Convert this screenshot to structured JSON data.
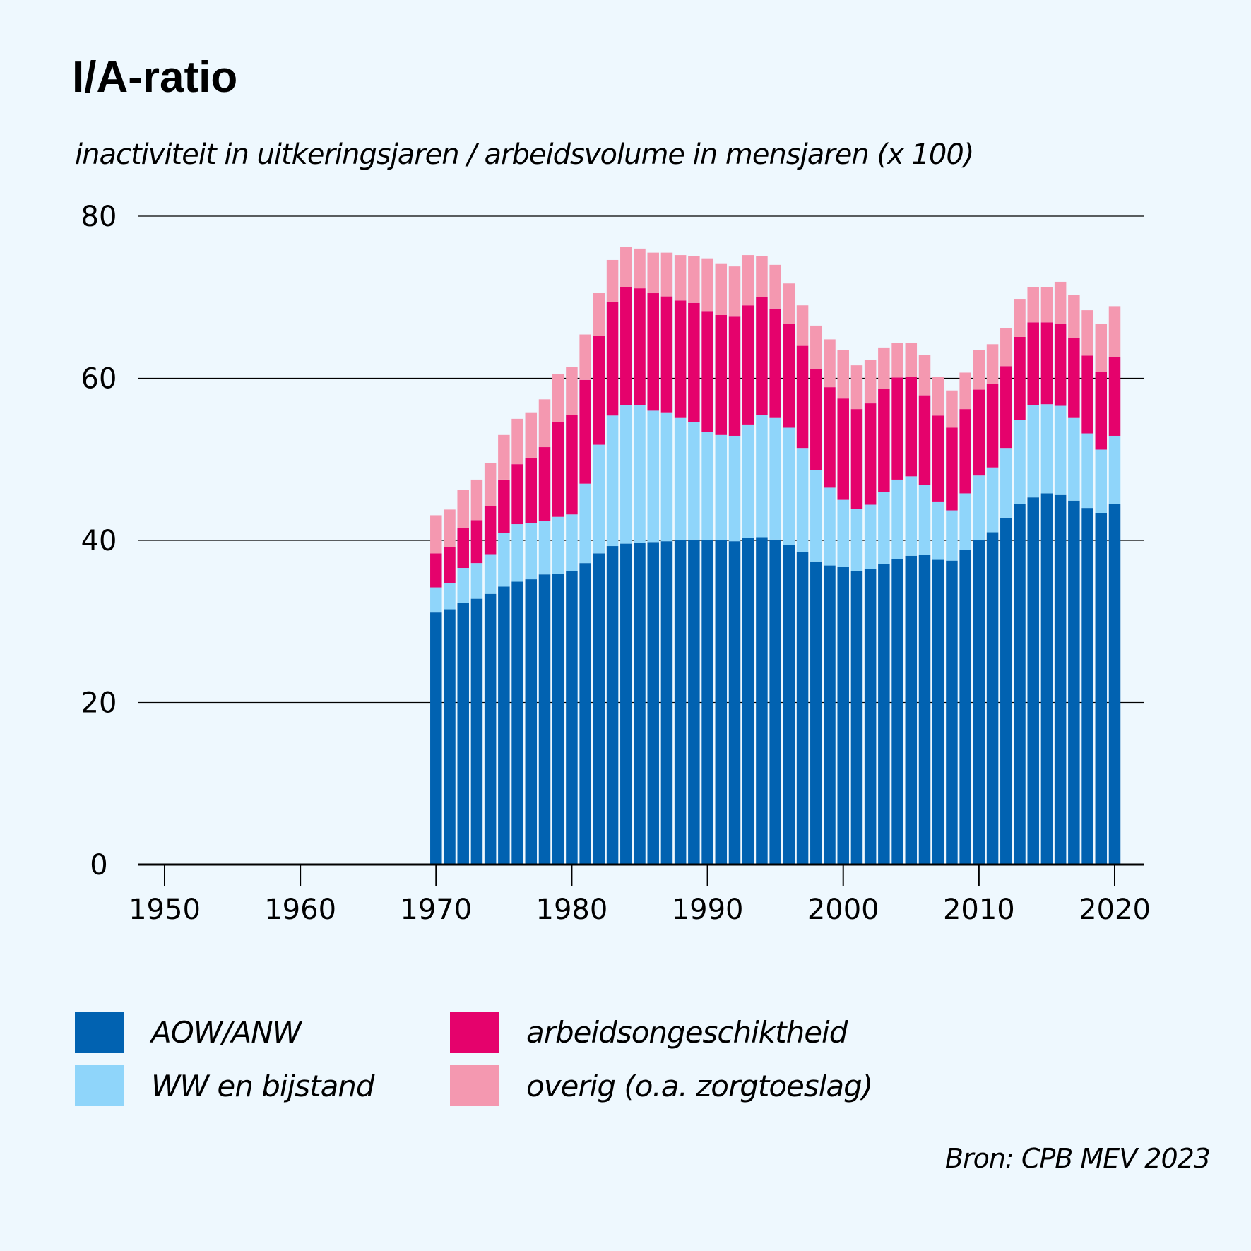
{
  "chart_data": {
    "type": "bar",
    "stacked": true,
    "title": "I/A-ratio",
    "subtitle": "inactiviteit in uitkeringsjaren / arbeidsvolume in mensjaren (x 100)",
    "source": "Bron: CPB MEV 2023",
    "ylim": [
      0,
      80
    ],
    "yticks": [
      0,
      20,
      40,
      60,
      80
    ],
    "xlim": [
      1947,
      2022
    ],
    "xticks": [
      1950,
      1960,
      1970,
      1980,
      1990,
      2000,
      2010,
      2020
    ],
    "grid": true,
    "legend_position": "bottom",
    "x": [
      1970,
      1971,
      1972,
      1973,
      1974,
      1975,
      1976,
      1977,
      1978,
      1979,
      1980,
      1981,
      1982,
      1983,
      1984,
      1985,
      1986,
      1987,
      1988,
      1989,
      1990,
      1991,
      1992,
      1993,
      1994,
      1995,
      1996,
      1997,
      1998,
      1999,
      2000,
      2001,
      2002,
      2003,
      2004,
      2005,
      2006,
      2007,
      2008,
      2009,
      2010,
      2011,
      2012,
      2013,
      2014,
      2015,
      2016,
      2017,
      2018,
      2019,
      2020
    ],
    "series": [
      {
        "name": "AOW/ANW",
        "color": "#0162b1",
        "values": [
          31.1,
          31.5,
          32.3,
          32.8,
          33.4,
          34.3,
          34.9,
          35.2,
          35.8,
          35.9,
          36.2,
          37.2,
          38.4,
          39.3,
          39.6,
          39.7,
          39.8,
          39.9,
          40.0,
          40.1,
          40.0,
          40.0,
          39.9,
          40.3,
          40.4,
          40.1,
          39.4,
          38.6,
          37.4,
          36.9,
          36.7,
          36.2,
          36.5,
          37.1,
          37.7,
          38.1,
          38.2,
          37.6,
          37.5,
          38.8,
          40.0,
          41.0,
          42.8,
          44.5,
          45.3,
          45.8,
          45.6,
          44.9,
          44.0,
          43.4,
          44.5
        ]
      },
      {
        "name": "WW en bijstand",
        "color": "#8fd5fa",
        "values": [
          3.1,
          3.2,
          4.3,
          4.4,
          4.9,
          6.6,
          7.1,
          6.9,
          6.6,
          7.0,
          7.0,
          9.8,
          13.4,
          16.1,
          17.1,
          17.0,
          16.2,
          15.9,
          15.1,
          14.5,
          13.4,
          13.0,
          13.0,
          14.0,
          15.1,
          15.0,
          14.5,
          12.8,
          11.3,
          9.6,
          8.3,
          7.7,
          7.9,
          8.9,
          9.8,
          9.8,
          8.6,
          7.2,
          6.2,
          7.0,
          8.0,
          8.0,
          8.6,
          10.4,
          11.4,
          11.0,
          11.0,
          10.2,
          9.2,
          7.8,
          8.4
        ]
      },
      {
        "name": "arbeidsongeschiktheid",
        "color": "#e5026c",
        "values": [
          4.2,
          4.5,
          4.9,
          5.3,
          5.9,
          6.6,
          7.4,
          8.1,
          9.1,
          11.7,
          12.3,
          12.8,
          13.4,
          14.0,
          14.5,
          14.4,
          14.5,
          14.3,
          14.5,
          14.7,
          14.9,
          14.8,
          14.7,
          14.7,
          14.5,
          13.5,
          12.8,
          12.6,
          12.4,
          12.4,
          12.5,
          12.3,
          12.5,
          12.7,
          12.6,
          12.3,
          11.1,
          10.6,
          10.2,
          10.4,
          10.6,
          10.3,
          10.1,
          10.2,
          10.2,
          10.1,
          10.1,
          9.9,
          9.6,
          9.6,
          9.7
        ]
      },
      {
        "name": "overig (o.a. zorgtoeslag)",
        "color": "#f498b0",
        "values": [
          4.7,
          4.6,
          4.7,
          5.0,
          5.3,
          5.5,
          5.6,
          5.6,
          5.9,
          5.9,
          5.9,
          5.6,
          5.3,
          5.2,
          5.0,
          4.9,
          5.0,
          5.4,
          5.6,
          5.8,
          6.5,
          6.3,
          6.2,
          6.2,
          5.1,
          5.4,
          5.0,
          5.0,
          5.4,
          5.9,
          6.0,
          5.4,
          5.4,
          5.1,
          4.3,
          4.2,
          5.0,
          4.8,
          4.6,
          4.5,
          4.9,
          4.9,
          4.7,
          4.7,
          4.3,
          4.3,
          5.2,
          5.3,
          5.6,
          5.9,
          6.3
        ]
      }
    ]
  }
}
